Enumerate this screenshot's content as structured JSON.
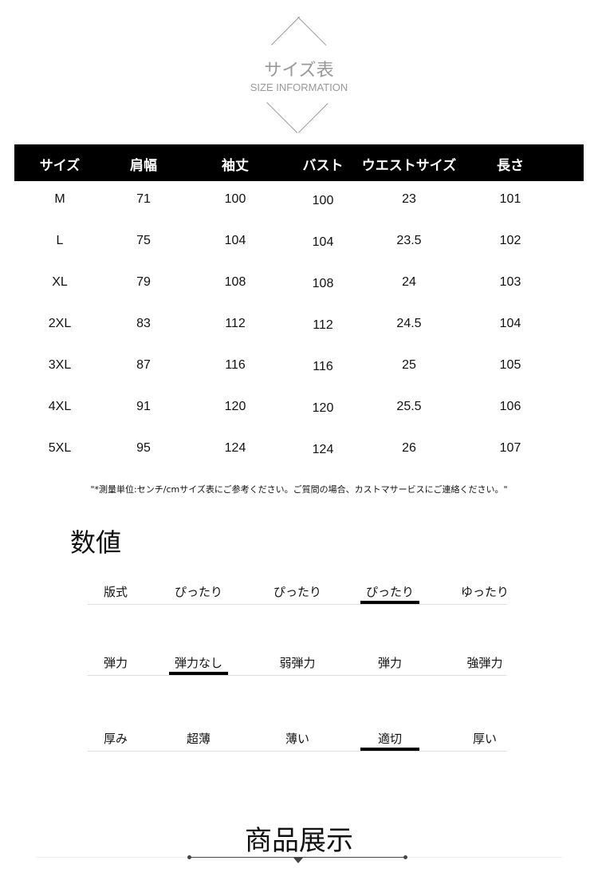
{
  "header": {
    "title": "サイズ表",
    "subtitle": "SIZE INFORMATION"
  },
  "table": {
    "columns": [
      "サイズ",
      "肩幅",
      "袖丈",
      "バスト",
      "ウエストサイズ",
      "長さ"
    ],
    "rows": [
      [
        "M",
        "71",
        "100",
        "100",
        "23",
        "101"
      ],
      [
        "L",
        "75",
        "104",
        "104",
        "23.5",
        "102"
      ],
      [
        "XL",
        "79",
        "108",
        "108",
        "24",
        "103"
      ],
      [
        "2XL",
        "83",
        "112",
        "112",
        "24.5",
        "104"
      ],
      [
        "3XL",
        "87",
        "116",
        "116",
        "25",
        "105"
      ],
      [
        "4XL",
        "91",
        "120",
        "120",
        "25.5",
        "106"
      ],
      [
        "5XL",
        "95",
        "124",
        "124",
        "26",
        "107"
      ]
    ]
  },
  "note": "\"*測量単位:センチ/cmサイズ表にご参考ください。ご質問の場合、カストマサービスにご連絡ください。\"",
  "specs": {
    "title": "数値",
    "rows": [
      {
        "label": "版式",
        "options": [
          "ぴったり",
          "ぴったり",
          "ぴったり",
          "ゆったり"
        ],
        "selected": 2
      },
      {
        "label": "弾力",
        "options": [
          "弾力なし",
          "弱弾力",
          "弾力",
          "強弾力"
        ],
        "selected": 0
      },
      {
        "label": "厚み",
        "options": [
          "超薄",
          "薄い",
          "適切",
          "厚い"
        ],
        "selected": 2
      }
    ]
  },
  "display": {
    "title": "商品展示"
  }
}
